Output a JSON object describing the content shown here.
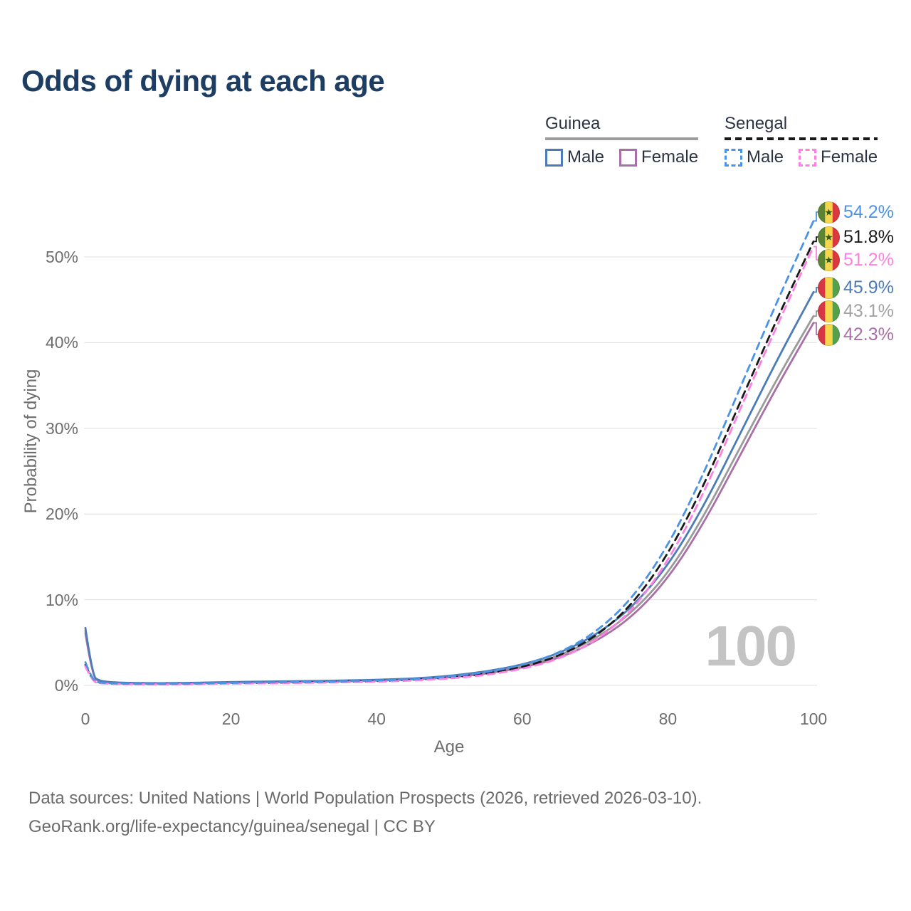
{
  "title": "Odds of dying at each age",
  "legend": {
    "groups": [
      {
        "country": "Guinea",
        "items": [
          {
            "label": "Male"
          },
          {
            "label": "Female"
          }
        ]
      },
      {
        "country": "Senegal",
        "items": [
          {
            "label": "Male"
          },
          {
            "label": "Female"
          }
        ]
      }
    ]
  },
  "chart_data": {
    "type": "line",
    "title": "Odds of dying at each age",
    "xlabel": "Age",
    "ylabel": "Probability of dying",
    "xlim": [
      0,
      100
    ],
    "ylim": [
      0,
      56
    ],
    "grid": "horizontal-only",
    "legend_position": "top-right",
    "watermark": "100",
    "xticks": [
      "0",
      "20",
      "40",
      "60",
      "80",
      "100"
    ],
    "yticks": [
      "0%",
      "10%",
      "20%",
      "30%",
      "40%",
      "50%"
    ],
    "xtick_values": [
      0,
      20,
      40,
      60,
      80,
      100
    ],
    "ytick_values": [
      0,
      10,
      20,
      30,
      40,
      50
    ],
    "ages": [
      0,
      1,
      2,
      3,
      5,
      10,
      15,
      20,
      25,
      30,
      35,
      40,
      45,
      50,
      55,
      60,
      65,
      70,
      75,
      80,
      85,
      90,
      95,
      100
    ],
    "series": [
      {
        "name": "Senegal Male",
        "country": "Senegal",
        "sex": "Male",
        "line_style": "dashed",
        "color": "#4b93e6",
        "flag": "senegal",
        "end_label": "54.2%",
        "values": [
          2.7,
          0.52,
          0.32,
          0.26,
          0.2,
          0.16,
          0.21,
          0.3,
          0.35,
          0.4,
          0.47,
          0.56,
          0.72,
          1.02,
          1.52,
          2.35,
          3.75,
          6.1,
          10.0,
          16.2,
          24.8,
          34.9,
          44.8,
          54.2
        ]
      },
      {
        "name": "Senegal Both sexes",
        "country": "Senegal",
        "sex": "Both",
        "line_style": "dashed",
        "color": "#1a1a1a",
        "flag": "senegal",
        "end_label": "51.8%",
        "values": [
          2.4,
          0.46,
          0.29,
          0.23,
          0.17,
          0.14,
          0.18,
          0.25,
          0.29,
          0.34,
          0.41,
          0.5,
          0.64,
          0.9,
          1.35,
          2.1,
          3.4,
          5.6,
          9.3,
          15.2,
          23.4,
          33.2,
          42.8,
          51.8
        ]
      },
      {
        "name": "Senegal Female",
        "country": "Senegal",
        "sex": "Female",
        "line_style": "dashed",
        "color": "#ff80e3",
        "flag": "senegal",
        "end_label": "51.2%",
        "values": [
          2.2,
          0.42,
          0.26,
          0.21,
          0.15,
          0.12,
          0.15,
          0.21,
          0.25,
          0.29,
          0.35,
          0.43,
          0.56,
          0.8,
          1.2,
          1.9,
          3.05,
          5.1,
          8.6,
          14.4,
          22.5,
          32.4,
          42.0,
          51.2
        ]
      },
      {
        "name": "Guinea Male",
        "country": "Guinea",
        "sex": "Male",
        "line_style": "solid",
        "color": "#4c7cb8",
        "flag": "guinea",
        "end_label": "45.9%",
        "values": [
          6.7,
          1.0,
          0.55,
          0.42,
          0.3,
          0.25,
          0.3,
          0.4,
          0.45,
          0.5,
          0.57,
          0.65,
          0.8,
          1.1,
          1.6,
          2.4,
          3.7,
          5.8,
          9.0,
          13.9,
          21.0,
          29.5,
          38.0,
          45.9
        ]
      },
      {
        "name": "Guinea Both sexes",
        "country": "Guinea",
        "sex": "Both",
        "line_style": "solid",
        "color": "#9a9a9a",
        "flag": "guinea",
        "end_label": "43.1%",
        "values": [
          6.4,
          0.92,
          0.5,
          0.38,
          0.28,
          0.23,
          0.27,
          0.36,
          0.4,
          0.45,
          0.52,
          0.6,
          0.74,
          1.0,
          1.45,
          2.2,
          3.4,
          5.4,
          8.4,
          13.0,
          19.8,
          27.9,
          35.8,
          43.1
        ]
      },
      {
        "name": "Guinea Female",
        "country": "Guinea",
        "sex": "Female",
        "line_style": "solid",
        "color": "#a96fa7",
        "flag": "guinea",
        "end_label": "42.3%",
        "values": [
          6.1,
          0.85,
          0.47,
          0.36,
          0.26,
          0.22,
          0.25,
          0.32,
          0.36,
          0.41,
          0.47,
          0.55,
          0.68,
          0.92,
          1.35,
          2.05,
          3.15,
          5.05,
          7.9,
          12.4,
          19.0,
          27.0,
          34.9,
          42.3
        ]
      }
    ]
  },
  "colors": {
    "title_text": "#1d3d63",
    "axis_text": "#6e6e6e",
    "gridline": "#e7e7e7",
    "guinea_underline": "#9e9e9e",
    "senegal_underline": "#1a1a1a",
    "watermark": "#c4c4c4"
  },
  "flags": {
    "senegal": {
      "green": "#5c8533",
      "yellow": "#f8d64b",
      "red": "#d93a3e",
      "star": "#2f5a1e"
    },
    "guinea": {
      "red": "#d63742",
      "yellow": "#f8d64b",
      "green": "#55a04c"
    }
  },
  "footer": {
    "line1": "Data sources: United Nations | World Population Prospects (2026, retrieved 2026-03-10).",
    "line2": "GeoRank.org/life-expectancy/guinea/senegal | CC BY"
  }
}
